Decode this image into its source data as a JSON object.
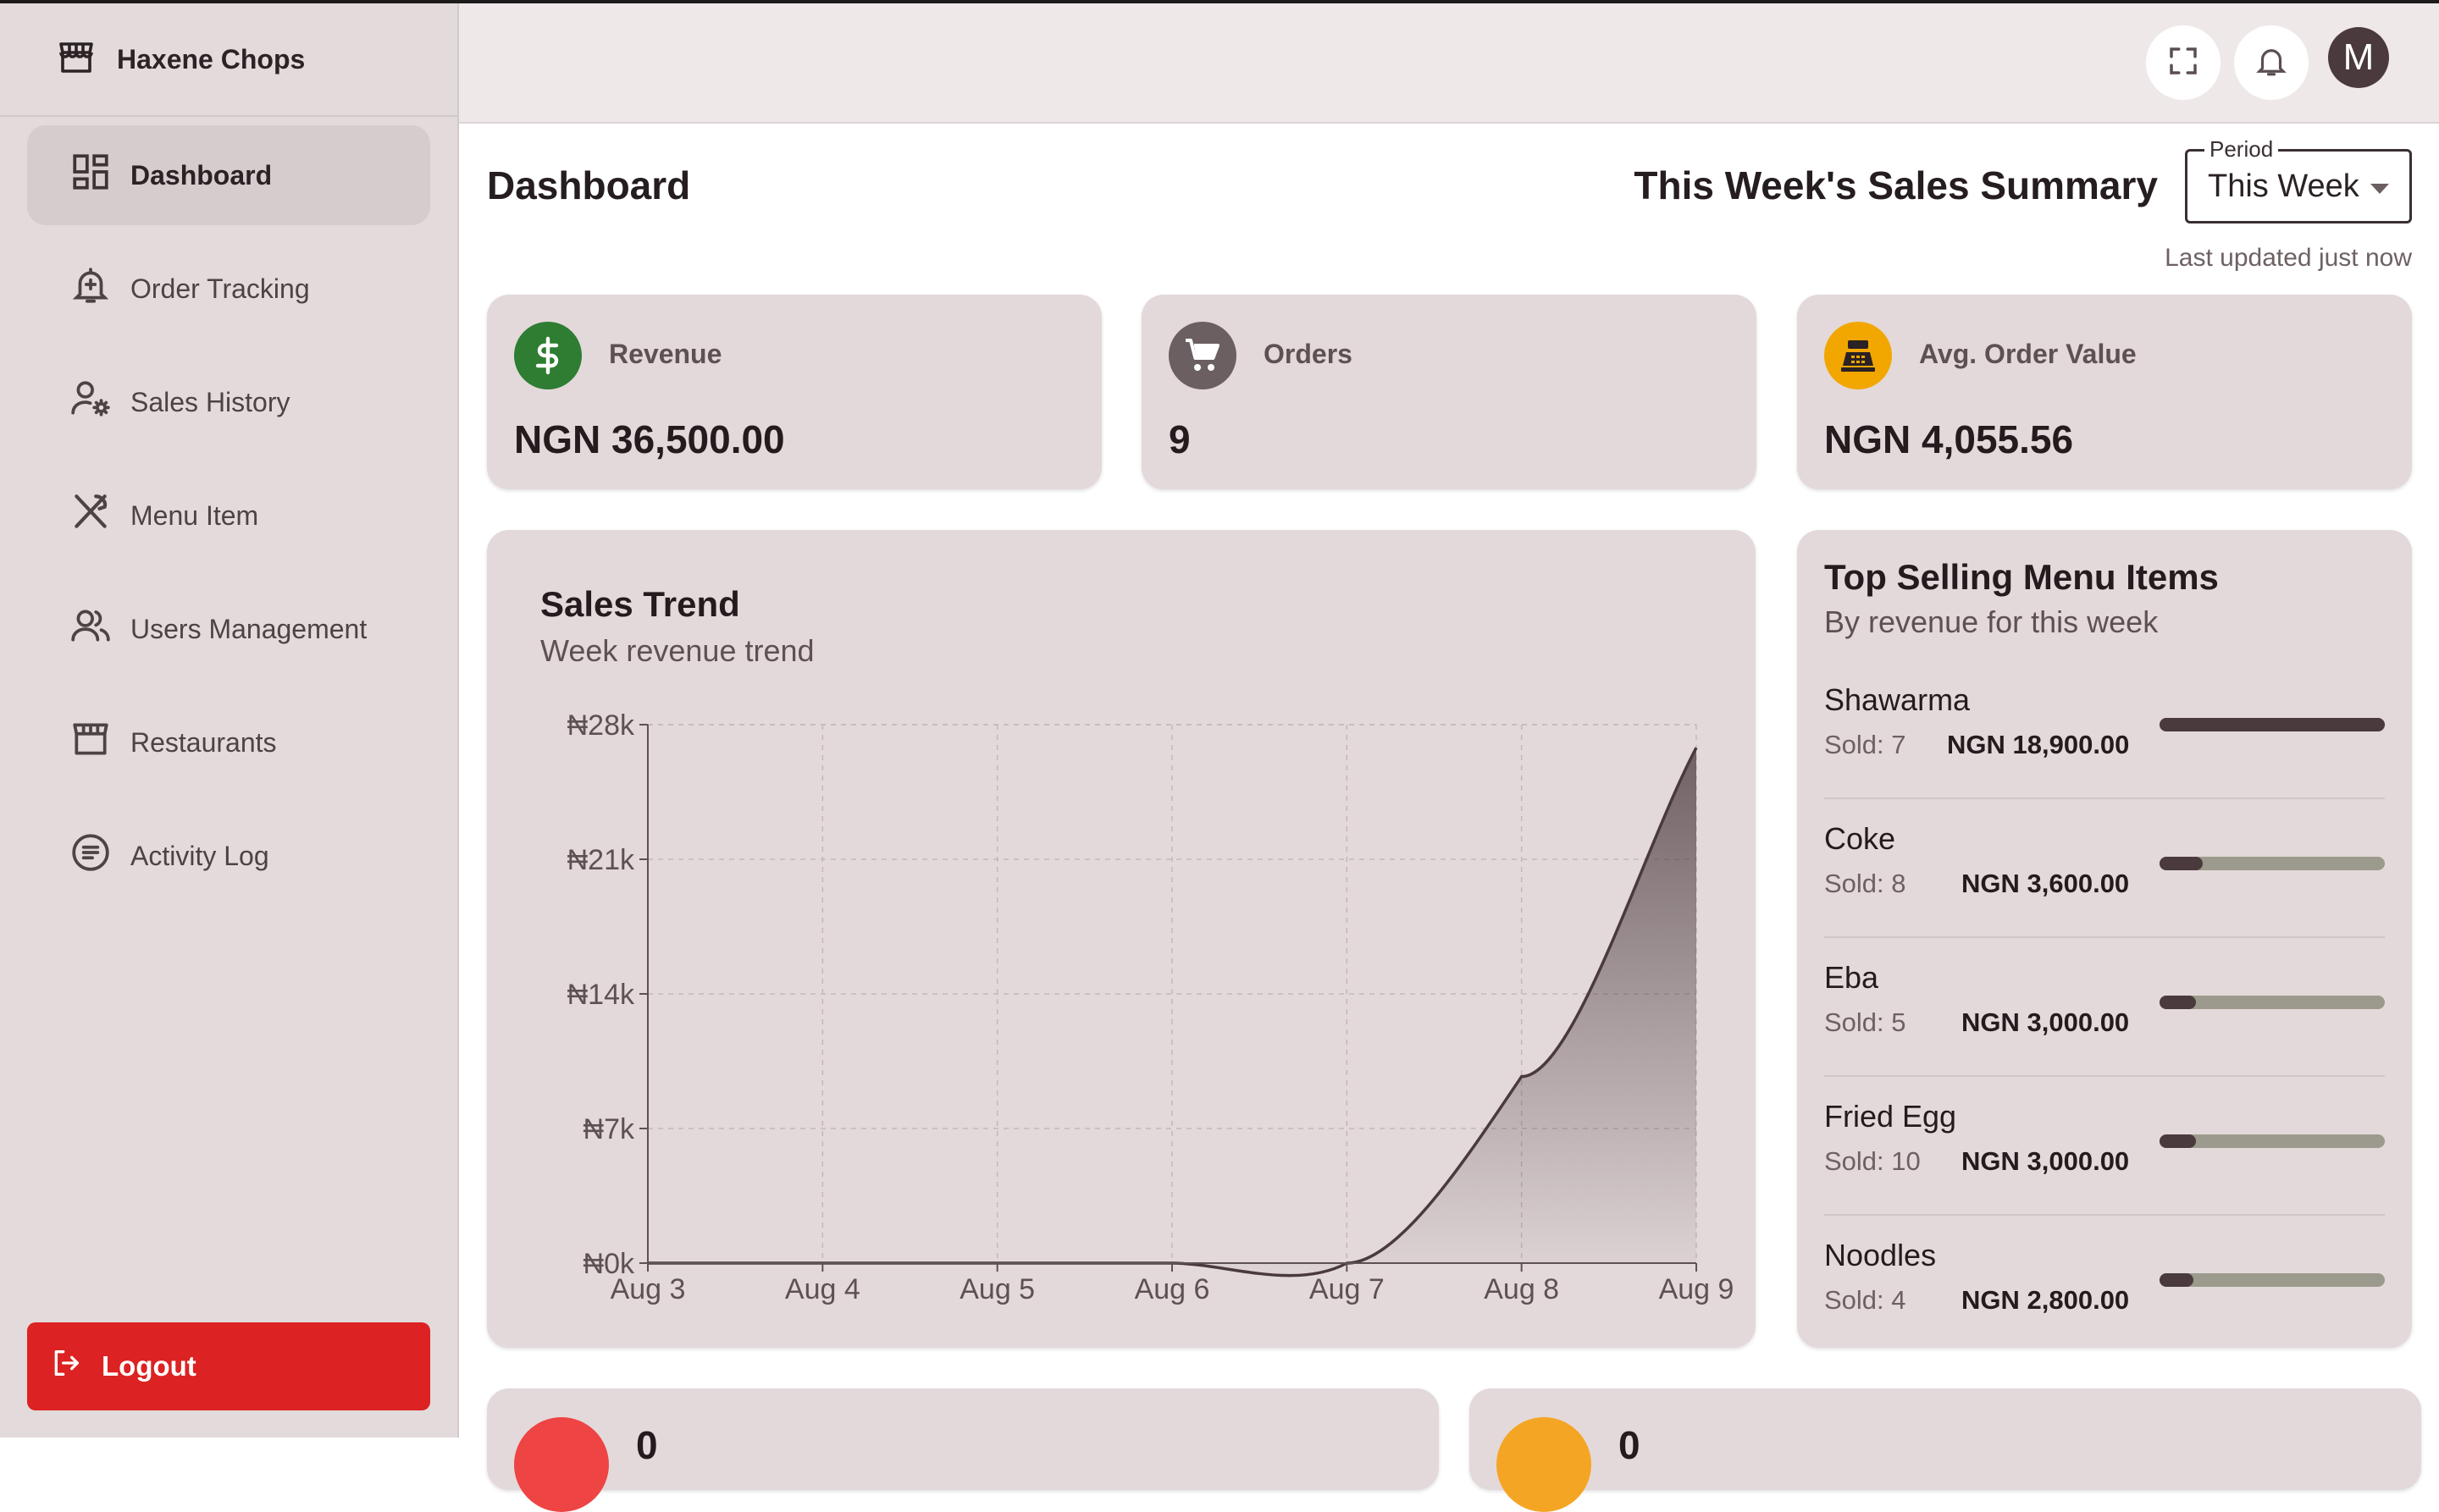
{
  "app": {
    "name": "Haxene Chops"
  },
  "sidebar": {
    "items": [
      {
        "label": "Dashboard",
        "icon": "dashboard-icon",
        "active": true
      },
      {
        "label": "Order Tracking",
        "icon": "bell-plus-icon"
      },
      {
        "label": "Sales History",
        "icon": "user-gear-icon"
      },
      {
        "label": "Menu Item",
        "icon": "utensils-icon"
      },
      {
        "label": "Users Management",
        "icon": "users-icon"
      },
      {
        "label": "Restaurants",
        "icon": "storefront-icon"
      },
      {
        "label": "Activity Log",
        "icon": "receipt-icon"
      }
    ],
    "logout_label": "Logout"
  },
  "header": {
    "avatar_initial": "M",
    "icons": [
      "fullscreen-icon",
      "bell-icon"
    ]
  },
  "page": {
    "title": "Dashboard",
    "summary_title": "This Week's Sales Summary",
    "period_label": "Period",
    "period_value": "This Week",
    "last_updated": "Last updated just now"
  },
  "kpis": {
    "revenue": {
      "label": "Revenue",
      "value": "NGN 36,500.00",
      "color": "#2e7d32",
      "icon": "dollar-icon"
    },
    "orders": {
      "label": "Orders",
      "value": "9",
      "color": "#6b5f62",
      "icon": "cart-icon"
    },
    "aov": {
      "label": "Avg. Order Value",
      "value": "NGN 4,055.56",
      "color": "#f2a600",
      "icon": "cash-register-icon"
    }
  },
  "trend": {
    "title": "Sales Trend",
    "subtitle": "Week revenue trend"
  },
  "chart_data": {
    "type": "area",
    "title": "Sales Trend",
    "subtitle": "Week revenue trend",
    "categories": [
      "Aug 3",
      "Aug 4",
      "Aug 5",
      "Aug 6",
      "Aug 7",
      "Aug 8",
      "Aug 9"
    ],
    "series": [
      {
        "values": [
          0,
          0,
          0,
          0,
          0,
          9700,
          26800
        ]
      }
    ],
    "y_ticks": [
      "₦0k",
      "₦7k",
      "₦14k",
      "₦21k",
      "₦28k"
    ],
    "y_tick_values": [
      0,
      7000,
      14000,
      21000,
      28000
    ],
    "ylim": [
      0,
      28000
    ],
    "grid": true,
    "color": "#4a3a3d"
  },
  "top_selling": {
    "title": "Top Selling Menu Items",
    "subtitle": "By revenue for this week",
    "items": [
      {
        "name": "Shawarma",
        "sold": "Sold: 7",
        "amount": "NGN 18,900.00",
        "share": 1.0
      },
      {
        "name": "Coke",
        "sold": "Sold: 8",
        "amount": "NGN 3,600.00",
        "share": 0.19
      },
      {
        "name": "Eba",
        "sold": "Sold: 5",
        "amount": "NGN 3,000.00",
        "share": 0.16
      },
      {
        "name": "Fried Egg",
        "sold": "Sold: 10",
        "amount": "NGN 3,000.00",
        "share": 0.16
      },
      {
        "name": "Noodles",
        "sold": "Sold: 4",
        "amount": "NGN 2,800.00",
        "share": 0.15
      }
    ]
  },
  "bottom_cards": [
    {
      "value": "0",
      "color": "#ef4444"
    },
    {
      "value": "0",
      "color": "#f5a524"
    }
  ]
}
